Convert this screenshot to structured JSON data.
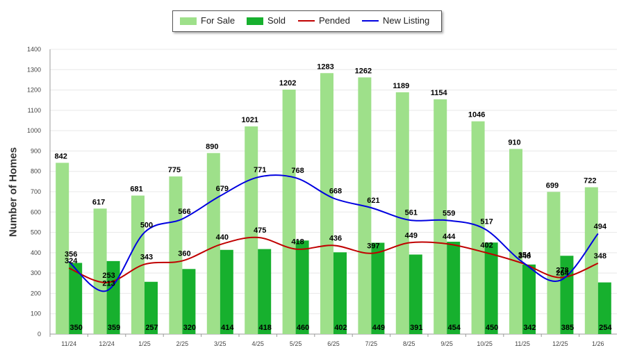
{
  "chart_data": {
    "type": "bar",
    "ylabel": "Number of Homes",
    "xlabel": "",
    "ylim": [
      0,
      1400
    ],
    "yticks": [
      0,
      100,
      200,
      300,
      400,
      500,
      600,
      700,
      800,
      900,
      1000,
      1100,
      1200,
      1300,
      1400
    ],
    "grid": true,
    "legend_position": "top-center",
    "categories": [
      "11/24",
      "12/24",
      "1/25",
      "2/25",
      "3/25",
      "4/25",
      "5/25",
      "6/25",
      "7/25",
      "8/25",
      "9/25",
      "10/25",
      "11/25",
      "12/25",
      "1/26"
    ],
    "series": [
      {
        "name": "For Sale",
        "kind": "bar",
        "color": "#9ee08a",
        "values": [
          842,
          617,
          681,
          775,
          890,
          1021,
          1202,
          1283,
          1262,
          1189,
          1154,
          1046,
          910,
          699,
          722
        ]
      },
      {
        "name": "Sold",
        "kind": "bar",
        "color": "#17b02e",
        "values": [
          350,
          359,
          257,
          320,
          414,
          418,
          460,
          402,
          449,
          391,
          454,
          450,
          342,
          385,
          254
        ]
      },
      {
        "name": "Pended",
        "kind": "line",
        "color": "#c00000",
        "values": [
          324,
          253,
          343,
          360,
          440,
          475,
          418,
          436,
          397,
          449,
          444,
          402,
          348,
          278,
          348
        ]
      },
      {
        "name": "New Listing",
        "kind": "line",
        "color": "#0000e0",
        "values": [
          356,
          213,
          500,
          566,
          679,
          771,
          768,
          668,
          621,
          561,
          559,
          517,
          354,
          264,
          494
        ]
      }
    ]
  }
}
